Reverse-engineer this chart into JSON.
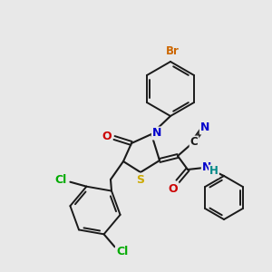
{
  "background_color": "#e8e8e8",
  "bond_color": "#1a1a1a",
  "atom_colors": {
    "Br": "#cc6600",
    "N": "#0000cc",
    "O": "#cc0000",
    "S": "#ccaa00",
    "Cl": "#00aa00",
    "C": "#1a1a1a",
    "H": "#008888"
  },
  "figsize": [
    3.0,
    3.0
  ],
  "dpi": 100
}
